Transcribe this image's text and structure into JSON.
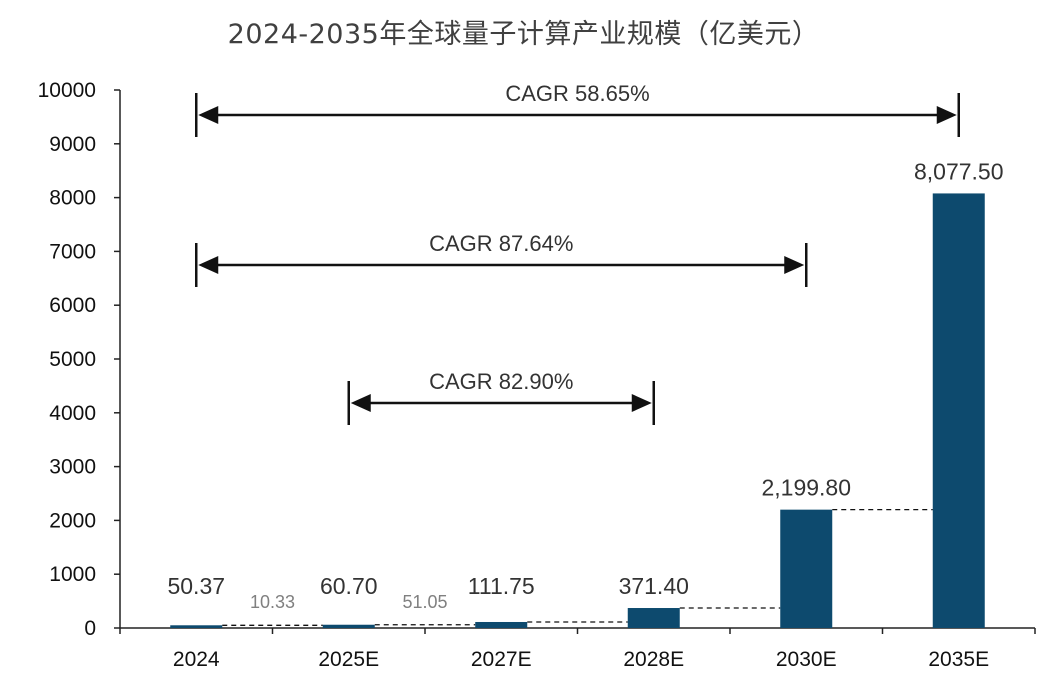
{
  "chart_data": {
    "type": "bar",
    "title": "2024-2035年全球量子计算产业规模（亿美元）",
    "categories": [
      "2024",
      "2025E",
      "2027E",
      "2028E",
      "2030E",
      "2035E"
    ],
    "values": [
      50.37,
      60.7,
      111.75,
      371.4,
      2199.8,
      8077.5
    ],
    "value_labels": [
      "50.37",
      "60.70",
      "111.75",
      "371.40",
      "2,199.80",
      "8,077.50"
    ],
    "growth_labels": [
      {
        "after_category": "2024",
        "text": "10.33"
      },
      {
        "after_category": "2025E",
        "text": "51.05"
      }
    ],
    "cagr_annotations": [
      {
        "from": "2024",
        "to": "2035E",
        "text": "CAGR 58.65%"
      },
      {
        "from": "2024",
        "to": "2030E",
        "text": "CAGR 87.64%"
      },
      {
        "from": "2025E",
        "to": "2028E",
        "text": "CAGR 82.90%"
      }
    ],
    "ylim": [
      0,
      10000
    ],
    "yticks": [
      "0",
      "1000",
      "2000",
      "3000",
      "4000",
      "5000",
      "6000",
      "7000",
      "8000",
      "9000",
      "10000"
    ],
    "xlabel": "",
    "ylabel": "",
    "grid": false,
    "legend": "none",
    "colors": {
      "bar": "#0d4a6e",
      "axis": "#222222",
      "dashed": "#111111",
      "growth_label": "#808080"
    }
  }
}
